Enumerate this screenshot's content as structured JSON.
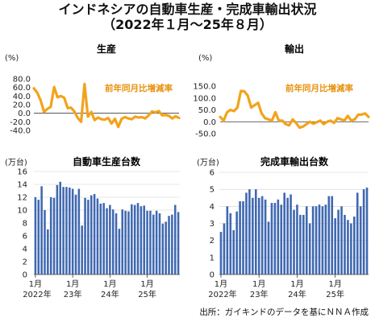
{
  "title_line1": "インドネシアの自動車生産・完成車輸出状況",
  "title_line2": "（2022年１月〜25年８月）",
  "source": "出所：ガイキンドのデータを基にＮＮＡ作成",
  "colors": {
    "line": "#f2a31c",
    "bar": "#3f68b1",
    "legend_text": "#e8920f",
    "zero_line": "#333333"
  },
  "chart_data": [
    {
      "type": "line",
      "title": "生産",
      "unit": "(%)",
      "legend": "前年同月比増減率",
      "ylim": [
        -40,
        80
      ],
      "yticks": [
        "80.0",
        "60.0",
        "40.0",
        "20.0",
        "0.0",
        "-20.0",
        "-40.0"
      ],
      "values": [
        58,
        48,
        30,
        3,
        10,
        15,
        61,
        37,
        40,
        36,
        12,
        13,
        4,
        -11,
        -20,
        68,
        -8,
        3,
        -16,
        -10,
        -14,
        -15,
        -11,
        -24,
        -13,
        -32,
        -13,
        -9,
        -12,
        -14,
        -8,
        -10,
        -9,
        -12,
        -5,
        4,
        2,
        5,
        -5,
        -4,
        -6,
        -12,
        -7,
        -11
      ]
    },
    {
      "type": "line",
      "title": "輸出",
      "unit": "(%)",
      "legend": "前年同月比増減率",
      "ylim": [
        -50,
        150
      ],
      "yticks": [
        "150.0",
        "100.0",
        "50.0",
        "0.0",
        "-50.0"
      ],
      "values": [
        20,
        5,
        40,
        50,
        45,
        60,
        130,
        128,
        110,
        60,
        70,
        80,
        36,
        15,
        10,
        5,
        40,
        5,
        5,
        -10,
        -15,
        10,
        -5,
        -25,
        -20,
        -10,
        0,
        -8,
        -2,
        5,
        -10,
        0,
        5,
        -5,
        15,
        10,
        5,
        25,
        5,
        10,
        30,
        30,
        35,
        20
      ]
    },
    {
      "type": "bar",
      "title": "自動車生産台数",
      "unit": "(万台)",
      "ylim": [
        0,
        16
      ],
      "yticks": [
        "16",
        "14",
        "12",
        "10",
        "8",
        "6",
        "4",
        "2",
        "0"
      ],
      "values": [
        12.0,
        11.6,
        13.7,
        10.0,
        7.0,
        12.0,
        11.9,
        13.9,
        14.4,
        13.6,
        13.6,
        13.5,
        13.3,
        12.4,
        13.3,
        7.6,
        11.9,
        11.6,
        12.3,
        12.5,
        11.8,
        11.0,
        11.1,
        10.3,
        10.8,
        10.1,
        9.5,
        7.1,
        10.1,
        9.9,
        9.8,
        10.9,
        10.8,
        11.1,
        10.6,
        10.7,
        9.9,
        9.9,
        9.3,
        9.9,
        9.5,
        7.9,
        8.2,
        9.1,
        9.3,
        10.8,
        9.7
      ],
      "xtick_labels": [
        {
          "month": "1月",
          "year": "2022年",
          "index": 0
        },
        {
          "month": "1月",
          "year": "23年",
          "index": 12
        },
        {
          "month": "1月",
          "year": "24年",
          "index": 24
        },
        {
          "month": "1月",
          "year": "25年",
          "index": 36
        }
      ]
    },
    {
      "type": "bar",
      "title": "完成車輸出台数",
      "unit": "(万台)",
      "ylim": [
        0,
        6
      ],
      "yticks": [
        "6",
        "5",
        "4",
        "3",
        "2",
        "1",
        "0"
      ],
      "values": [
        2.5,
        3.0,
        4.0,
        3.6,
        2.6,
        3.7,
        4.3,
        4.3,
        4.8,
        5.0,
        4.5,
        5.0,
        4.5,
        4.6,
        4.4,
        3.1,
        4.2,
        4.2,
        4.4,
        4.1,
        4.8,
        4.5,
        4.7,
        3.8,
        4.1,
        3.5,
        3.5,
        4.0,
        3.0,
        4.0,
        4.0,
        4.1,
        4.0,
        4.1,
        4.6,
        4.6,
        3.3,
        3.8,
        4.0,
        3.5,
        3.2,
        3.0,
        3.4,
        4.8,
        4.0,
        5.0,
        5.1
      ],
      "xtick_labels": [
        {
          "month": "1月",
          "year": "2022年",
          "index": 0
        },
        {
          "month": "1月",
          "year": "23年",
          "index": 12
        },
        {
          "month": "1月",
          "year": "24年",
          "index": 24
        },
        {
          "month": "1月",
          "year": "25年",
          "index": 36
        }
      ]
    }
  ]
}
